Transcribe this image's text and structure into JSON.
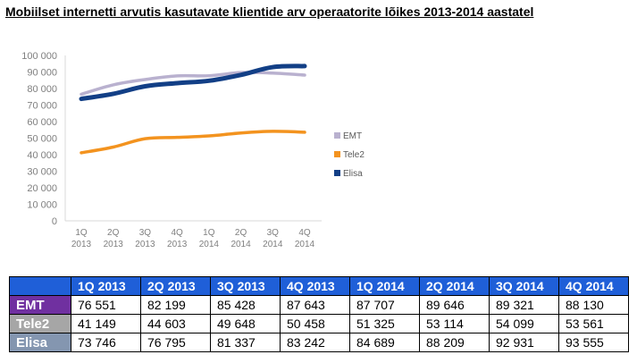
{
  "title": "Mobiilset internetti arvutis kasutavate klientide arv operaatorite lõikes 2013-2014 aastatel",
  "chart_data": {
    "type": "line",
    "categories": [
      "1Q 2013",
      "2Q 2013",
      "3Q 2013",
      "4Q 2013",
      "1Q 2014",
      "2Q 2014",
      "3Q 2014",
      "4Q 2014"
    ],
    "category_lines": [
      [
        "1Q",
        "2013"
      ],
      [
        "2Q",
        "2013"
      ],
      [
        "3Q",
        "2013"
      ],
      [
        "4Q",
        "2013"
      ],
      [
        "1Q",
        "2014"
      ],
      [
        "2Q",
        "2014"
      ],
      [
        "3Q",
        "2014"
      ],
      [
        "4Q",
        "2014"
      ]
    ],
    "y_ticks": [
      "0",
      "10 000",
      "20 000",
      "30 000",
      "40 000",
      "50 000",
      "60 000",
      "70 000",
      "80 000",
      "90 000",
      "100 000"
    ],
    "ylim": [
      0,
      100000
    ],
    "grid": false,
    "legend_position": "right",
    "series": [
      {
        "name": "EMT",
        "color": "#b9b1cf",
        "values": [
          76551,
          82199,
          85428,
          87643,
          87707,
          89646,
          89321,
          88130
        ]
      },
      {
        "name": "Tele2",
        "color": "#f3931f",
        "values": [
          41149,
          44603,
          49648,
          50458,
          51325,
          53114,
          54099,
          53561
        ]
      },
      {
        "name": "Elisa",
        "color": "#123f86",
        "values": [
          73746,
          76795,
          81337,
          83242,
          84689,
          88209,
          92931,
          93555
        ]
      }
    ]
  },
  "table": {
    "headers": [
      "1Q 2013",
      "2Q 2013",
      "3Q 2013",
      "4Q 2013",
      "1Q 2014",
      "2Q 2014",
      "3Q 2014",
      "4Q 2014"
    ],
    "rows": [
      {
        "label": "EMT",
        "color": "#7030a0",
        "cells": [
          "76 551",
          "82 199",
          "85 428",
          "87 643",
          "87 707",
          "89 646",
          "89 321",
          "88 130"
        ]
      },
      {
        "label": "Tele2",
        "color": "#a6a6a6",
        "cells": [
          "41 149",
          "44 603",
          "49 648",
          "50 458",
          "51 325",
          "53 114",
          "54 099",
          "53 561"
        ]
      },
      {
        "label": "Elisa",
        "color": "#8496b0",
        "cells": [
          "73 746",
          "76 795",
          "81 337",
          "83 242",
          "84 689",
          "88 209",
          "92 931",
          "93 555"
        ]
      }
    ]
  }
}
